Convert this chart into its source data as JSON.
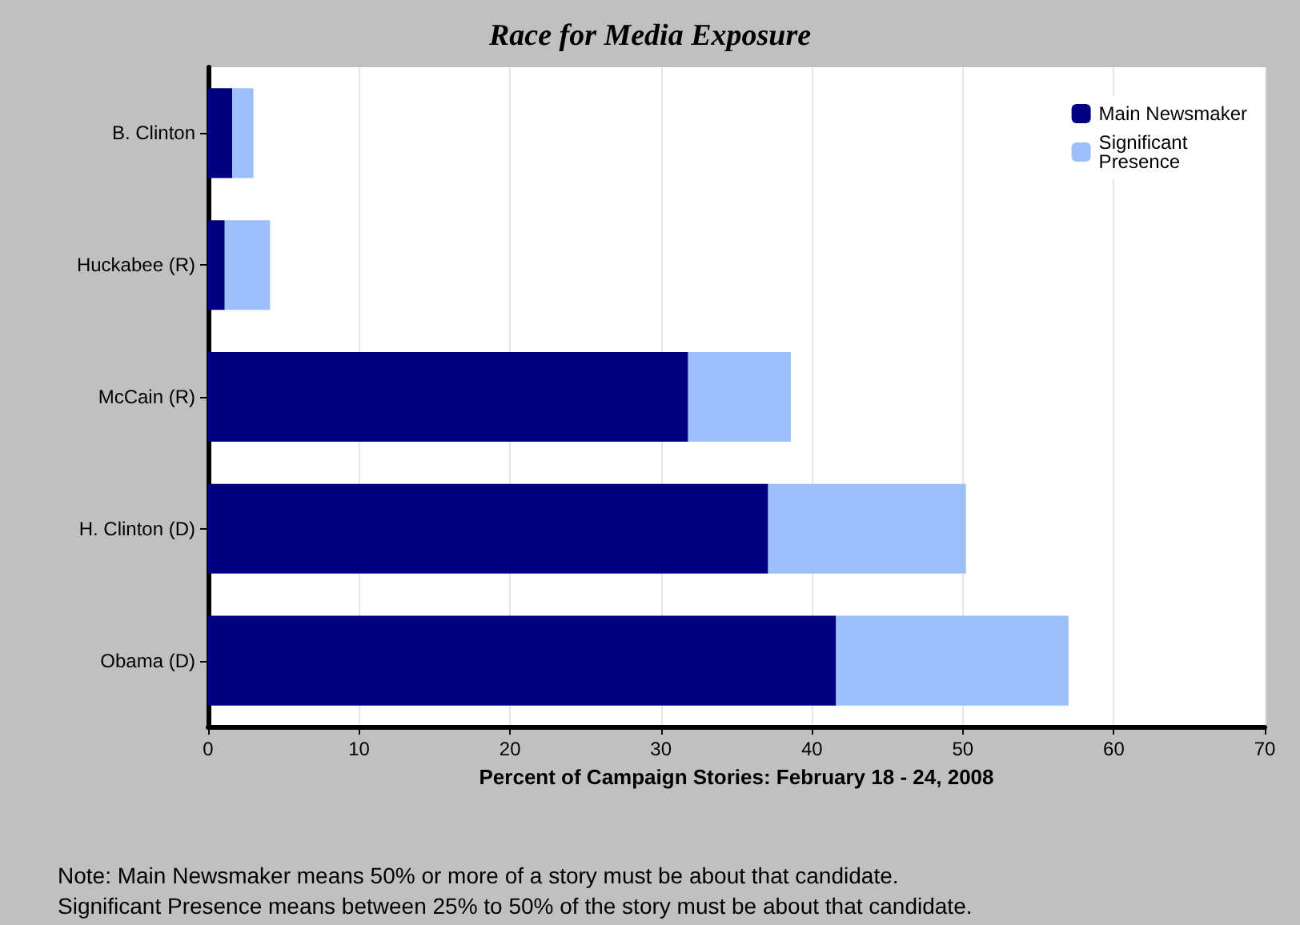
{
  "chart_data": {
    "type": "bar",
    "orientation": "horizontal",
    "stacked": true,
    "title": "Race for Media Exposure",
    "xlabel": "Percent of Campaign Stories: February 18 - 24, 2008",
    "categories": [
      "B. Clinton",
      "Huckabee (R)",
      "McCain (R)",
      "H. Clinton (D)",
      "Obama (D)"
    ],
    "series": [
      {
        "name": "Main Newsmaker",
        "color": "#000080",
        "values": [
          1.6,
          1.1,
          31.8,
          37.1,
          41.6
        ]
      },
      {
        "name": "Significant\nPresence",
        "color": "#9dbff9",
        "values": [
          1.4,
          3.0,
          6.8,
          13.1,
          15.4
        ]
      }
    ],
    "xlim": [
      0,
      70
    ],
    "xticks": [
      0,
      10,
      20,
      30,
      40,
      50,
      60,
      70
    ],
    "grid": "x",
    "legend": "top right",
    "annotations": [
      "Note: Main Newsmaker means 50% or more of a story must be about that candidate.",
      "Significant Presence means between 25% to 50% of the story must be about that candidate."
    ]
  }
}
